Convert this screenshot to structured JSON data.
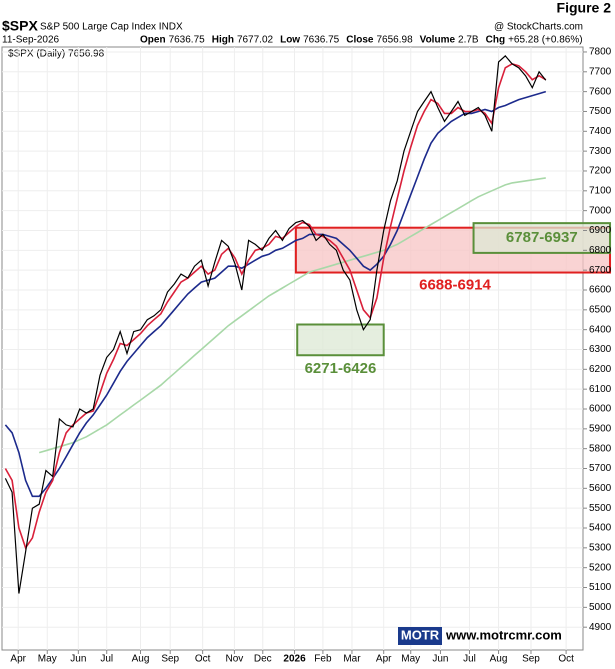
{
  "chart_data": {
    "type": "line",
    "figure_label": "Figure 2",
    "title": "$SPX",
    "subtitle": "S&P 500 Large Cap Index INDX",
    "source": "@ StockCharts.com",
    "date": "11-Sep-2026",
    "quote": [
      {
        "label": "Open",
        "value": "7636.75"
      },
      {
        "label": "High",
        "value": "7677.02"
      },
      {
        "label": "Low",
        "value": "7636.75"
      },
      {
        "label": "Close",
        "value": "7656.98"
      },
      {
        "label": "Volume",
        "value": "2.7B"
      },
      {
        "label": "Chg",
        "value": "+65.28 (+0.86%)"
      }
    ],
    "footer": {
      "logo": "MOTR",
      "url": "www.motrcmr.com"
    },
    "x": [
      0,
      1,
      2,
      3,
      4,
      5,
      6,
      7,
      8,
      9,
      10,
      11,
      12,
      13,
      14,
      15,
      16,
      17,
      18,
      19,
      20,
      21,
      22,
      23,
      24,
      25,
      26,
      27,
      28,
      29,
      30,
      31,
      32,
      33,
      34,
      35,
      36,
      37,
      38,
      39,
      40,
      41,
      42,
      43,
      44,
      45,
      46,
      47,
      48,
      49,
      50,
      51,
      52,
      53,
      54,
      55,
      56,
      57,
      58,
      59,
      60,
      61,
      62,
      63,
      64,
      65,
      66,
      67,
      68,
      69,
      70,
      71,
      72,
      73,
      74,
      75,
      76,
      77,
      78,
      79,
      80
    ],
    "series": [
      {
        "name": "$SPX (Daily) 7656.98",
        "color": "#000000",
        "values": [
          5650,
          5580,
          5070,
          5280,
          5500,
          5520,
          5690,
          5660,
          5950,
          5920,
          5910,
          6000,
          5980,
          6000,
          6170,
          6260,
          6300,
          6390,
          6280,
          6390,
          6400,
          6450,
          6470,
          6500,
          6590,
          6630,
          6680,
          6660,
          6720,
          6750,
          6620,
          6740,
          6850,
          6820,
          6730,
          6600,
          6850,
          6830,
          6800,
          6860,
          6900,
          6850,
          6910,
          6940,
          6950,
          6920,
          6850,
          6880,
          6830,
          6800,
          6700,
          6650,
          6500,
          6400,
          6450,
          6700,
          6900,
          7050,
          7150,
          7300,
          7400,
          7500,
          7550,
          7600,
          7520,
          7450,
          7500,
          7550,
          7480,
          7500,
          7520,
          7480,
          7400,
          7750,
          7780,
          7740,
          7720,
          7680,
          7620,
          7700,
          7657
        ]
      },
      {
        "color": "#d9203a",
        "values": [
          5700,
          5640,
          5400,
          5300,
          5350,
          5480,
          5580,
          5640,
          5780,
          5880,
          5920,
          5950,
          5980,
          5990,
          6080,
          6180,
          6250,
          6330,
          6320,
          6350,
          6380,
          6420,
          6450,
          6480,
          6540,
          6590,
          6640,
          6660,
          6690,
          6720,
          6680,
          6700,
          6780,
          6810,
          6760,
          6680,
          6750,
          6800,
          6810,
          6830,
          6870,
          6860,
          6890,
          6920,
          6940,
          6930,
          6880,
          6870,
          6850,
          6820,
          6760,
          6700,
          6600,
          6500,
          6460,
          6560,
          6760,
          6920,
          7060,
          7200,
          7320,
          7430,
          7500,
          7560,
          7540,
          7490,
          7490,
          7520,
          7500,
          7500,
          7510,
          7490,
          7440,
          7620,
          7720,
          7740,
          7730,
          7700,
          7660,
          7680,
          7660
        ]
      },
      {
        "color": "#1c2a8c",
        "values": [
          5920,
          5880,
          5780,
          5640,
          5560,
          5560,
          5600,
          5650,
          5700,
          5760,
          5820,
          5880,
          5930,
          5970,
          6020,
          6070,
          6130,
          6190,
          6240,
          6280,
          6320,
          6360,
          6390,
          6420,
          6460,
          6500,
          6540,
          6580,
          6610,
          6640,
          6650,
          6660,
          6690,
          6720,
          6720,
          6710,
          6730,
          6750,
          6770,
          6780,
          6800,
          6810,
          6830,
          6850,
          6860,
          6880,
          6880,
          6880,
          6870,
          6860,
          6830,
          6800,
          6760,
          6720,
          6700,
          6730,
          6770,
          6830,
          6900,
          6990,
          7080,
          7170,
          7260,
          7340,
          7390,
          7420,
          7450,
          7470,
          7490,
          7490,
          7500,
          7510,
          7500,
          7520,
          7530,
          7545,
          7560,
          7570,
          7580,
          7590,
          7600
        ]
      },
      {
        "color": "#a8d8a8",
        "values": [
          null,
          null,
          null,
          null,
          null,
          5780,
          5790,
          5800,
          5810,
          5820,
          5830,
          5845,
          5860,
          5880,
          5900,
          5920,
          5945,
          5970,
          5995,
          6020,
          6045,
          6070,
          6095,
          6120,
          6150,
          6180,
          6210,
          6240,
          6270,
          6300,
          6330,
          6360,
          6390,
          6420,
          6445,
          6470,
          6495,
          6520,
          6545,
          6570,
          6590,
          6610,
          6630,
          6650,
          6670,
          6690,
          6700,
          6710,
          6720,
          6730,
          6740,
          6750,
          6760,
          6770,
          6780,
          6790,
          6800,
          6815,
          6830,
          6850,
          6870,
          6890,
          6910,
          6930,
          6950,
          6970,
          6990,
          7010,
          7030,
          7050,
          7070,
          7085,
          7100,
          7115,
          7130,
          7140,
          7145,
          7150,
          7155,
          7160,
          7165
        ]
      }
    ],
    "xlim": [
      -0.5,
      85.5
    ],
    "xticks": [
      {
        "value": 1.9,
        "label": "Apr"
      },
      {
        "value": 6.2,
        "label": "May"
      },
      {
        "value": 10.8,
        "label": "Jun"
      },
      {
        "value": 15,
        "label": "Jul"
      },
      {
        "value": 20,
        "label": "Aug"
      },
      {
        "value": 24.4,
        "label": "Sep"
      },
      {
        "value": 29.2,
        "label": "Oct"
      },
      {
        "value": 33.9,
        "label": "Nov"
      },
      {
        "value": 38.1,
        "label": "Dec"
      },
      {
        "value": 42.8,
        "label": "2026"
      },
      {
        "value": 47,
        "label": "Feb"
      },
      {
        "value": 51.3,
        "label": "Mar"
      },
      {
        "value": 56,
        "label": "Apr"
      },
      {
        "value": 60,
        "label": "May"
      },
      {
        "value": 64.4,
        "label": "Jun"
      },
      {
        "value": 68.7,
        "label": "Jul"
      },
      {
        "value": 73,
        "label": "Aug"
      },
      {
        "value": 77.8,
        "label": "Sep"
      },
      {
        "value": 83,
        "label": "Oct"
      }
    ],
    "ylim": [
      4785,
      7825
    ],
    "yticks": [
      4900,
      5000,
      5100,
      5200,
      5300,
      5400,
      5500,
      5600,
      5700,
      5800,
      5900,
      6000,
      6100,
      6200,
      6300,
      6400,
      6500,
      6600,
      6700,
      6800,
      6900,
      7000,
      7100,
      7200,
      7300,
      7400,
      7500,
      7600,
      7700,
      7800
    ],
    "grid": true,
    "annotations": [
      {
        "label": "6688-6914",
        "range": [
          6688,
          6914
        ],
        "xrange": [
          43,
          89.5
        ],
        "color": "#e02020",
        "fill": "#f7c4c4"
      },
      {
        "label": "6271-6426",
        "range": [
          6271,
          6426
        ],
        "xrange": [
          43.2,
          56
        ],
        "color": "#5a8f3a",
        "fill": "#dce8d4"
      },
      {
        "label": "6787-6937",
        "range": [
          6787,
          6937
        ],
        "xrange": [
          69.3,
          89.5
        ],
        "color": "#5a8f3a",
        "fill": "#dce8d4"
      }
    ]
  }
}
